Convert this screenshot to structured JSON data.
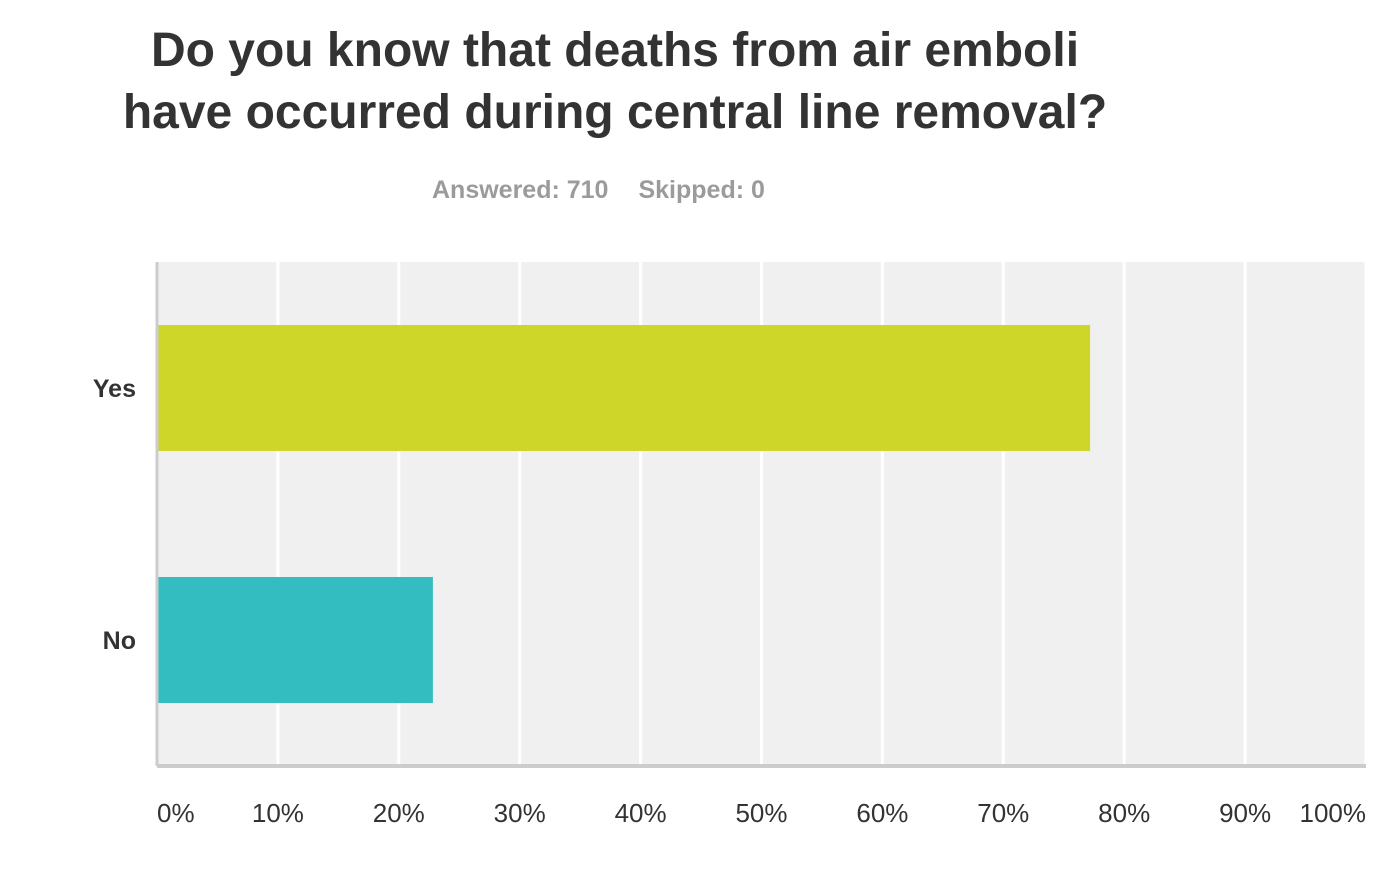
{
  "title_lines": [
    "Do you know that deaths from air emboli",
    "have occurred during central line removal?"
  ],
  "stats": {
    "answered": "Answered: 710",
    "skipped": "Skipped: 0"
  },
  "chart_data": {
    "type": "bar",
    "orientation": "horizontal",
    "title": "Do you know that deaths from air emboli have occurred during central line removal?",
    "categories": [
      "Yes",
      "No"
    ],
    "values": [
      77.18,
      22.82
    ],
    "value_unit": "%",
    "xlim": [
      0,
      100
    ],
    "xticks": [
      "0%",
      "10%",
      "20%",
      "30%",
      "40%",
      "50%",
      "60%",
      "70%",
      "80%",
      "90%",
      "100%"
    ],
    "grid": true,
    "colors": {
      "Yes": "#cfd62a",
      "No": "#33bdc0",
      "plot_bg": "#f0f0f0",
      "grid": "#ffffff",
      "axis": "#cccccc"
    }
  }
}
